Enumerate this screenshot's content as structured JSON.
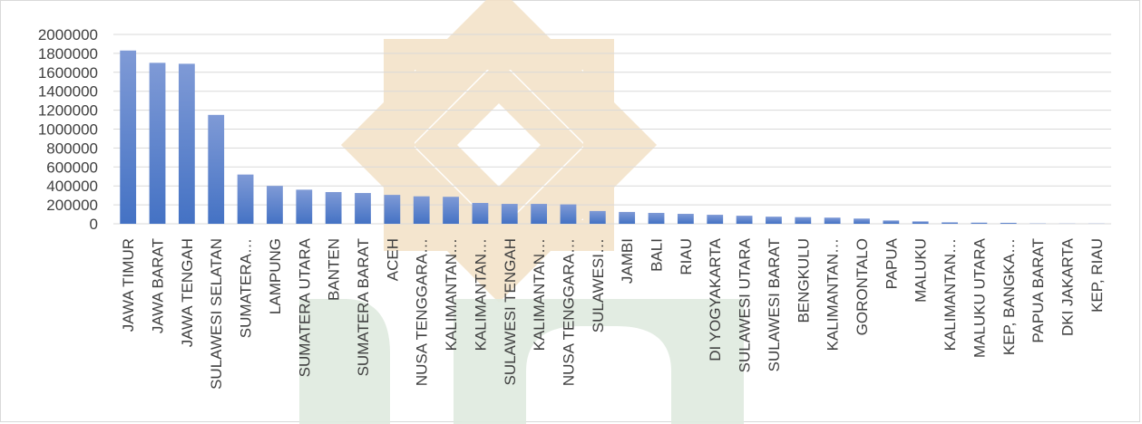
{
  "chart_data": {
    "type": "bar",
    "categories": [
      "JAWA TIMUR",
      "JAWA BARAT",
      "JAWA TENGAH",
      "SULAWESI SELATAN",
      "SUMATERA…",
      "LAMPUNG",
      "SUMATERA UTARA",
      "BANTEN",
      "SUMATERA BARAT",
      "ACEH",
      "NUSA TENGGARA…",
      "KALIMANTAN…",
      "KALIMANTAN…",
      "SULAWESI TENGAH",
      "KALIMANTAN…",
      "NUSA TENGGARA…",
      "SULAWESI…",
      "JAMBI",
      "BALI",
      "RIAU",
      "DI YOGYAKARTA",
      "SULAWESI UTARA",
      "SULAWESI BARAT",
      "BENGKULU",
      "KALIMANTAN…",
      "GORONTALO",
      "PAPUA",
      "MALUKU",
      "KALIMANTAN…",
      "MALUKU UTARA",
      "KEP, BANGKA…",
      "PAPUA BARAT",
      "DKI JAKARTA",
      "KEP, RIAU"
    ],
    "values": [
      1830000,
      1700000,
      1690000,
      1150000,
      520000,
      400000,
      360000,
      335000,
      325000,
      305000,
      290000,
      285000,
      220000,
      210000,
      210000,
      205000,
      135000,
      125000,
      115000,
      105000,
      95000,
      85000,
      75000,
      70000,
      65000,
      55000,
      35000,
      25000,
      15000,
      12000,
      10000,
      3000,
      2000,
      2000
    ],
    "y_ticks": [
      "0",
      "200000",
      "400000",
      "600000",
      "800000",
      "1000000",
      "1200000",
      "1400000",
      "1600000",
      "1800000",
      "2000000"
    ],
    "ylim": [
      0,
      2000000
    ],
    "grid": true,
    "colors": {
      "bar_top": "#7f9ad6",
      "bar_bottom": "#4472c4",
      "grid": "#d9d9d9",
      "text": "#404040"
    }
  }
}
